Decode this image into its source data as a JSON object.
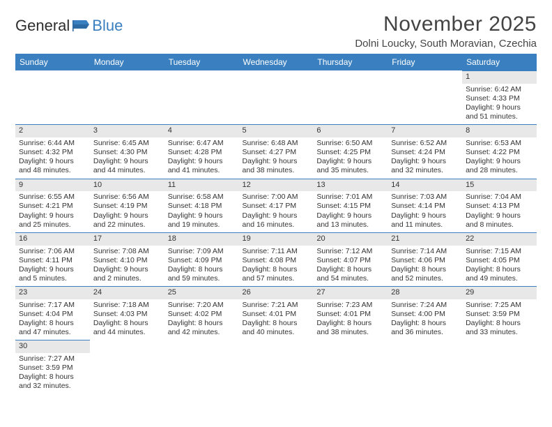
{
  "brand": {
    "part1": "General",
    "part2": "Blue"
  },
  "title": "November 2025",
  "location": "Dolni Loucky, South Moravian, Czechia",
  "theme": {
    "accent": "#3a7fbf",
    "header_bg": "#e8e8e8",
    "text": "#333333"
  },
  "day_names": [
    "Sunday",
    "Monday",
    "Tuesday",
    "Wednesday",
    "Thursday",
    "Friday",
    "Saturday"
  ],
  "weeks": [
    [
      null,
      null,
      null,
      null,
      null,
      null,
      {
        "n": "1",
        "sr": "Sunrise: 6:42 AM",
        "ss": "Sunset: 4:33 PM",
        "d1": "Daylight: 9 hours",
        "d2": "and 51 minutes."
      }
    ],
    [
      {
        "n": "2",
        "sr": "Sunrise: 6:44 AM",
        "ss": "Sunset: 4:32 PM",
        "d1": "Daylight: 9 hours",
        "d2": "and 48 minutes."
      },
      {
        "n": "3",
        "sr": "Sunrise: 6:45 AM",
        "ss": "Sunset: 4:30 PM",
        "d1": "Daylight: 9 hours",
        "d2": "and 44 minutes."
      },
      {
        "n": "4",
        "sr": "Sunrise: 6:47 AM",
        "ss": "Sunset: 4:28 PM",
        "d1": "Daylight: 9 hours",
        "d2": "and 41 minutes."
      },
      {
        "n": "5",
        "sr": "Sunrise: 6:48 AM",
        "ss": "Sunset: 4:27 PM",
        "d1": "Daylight: 9 hours",
        "d2": "and 38 minutes."
      },
      {
        "n": "6",
        "sr": "Sunrise: 6:50 AM",
        "ss": "Sunset: 4:25 PM",
        "d1": "Daylight: 9 hours",
        "d2": "and 35 minutes."
      },
      {
        "n": "7",
        "sr": "Sunrise: 6:52 AM",
        "ss": "Sunset: 4:24 PM",
        "d1": "Daylight: 9 hours",
        "d2": "and 32 minutes."
      },
      {
        "n": "8",
        "sr": "Sunrise: 6:53 AM",
        "ss": "Sunset: 4:22 PM",
        "d1": "Daylight: 9 hours",
        "d2": "and 28 minutes."
      }
    ],
    [
      {
        "n": "9",
        "sr": "Sunrise: 6:55 AM",
        "ss": "Sunset: 4:21 PM",
        "d1": "Daylight: 9 hours",
        "d2": "and 25 minutes."
      },
      {
        "n": "10",
        "sr": "Sunrise: 6:56 AM",
        "ss": "Sunset: 4:19 PM",
        "d1": "Daylight: 9 hours",
        "d2": "and 22 minutes."
      },
      {
        "n": "11",
        "sr": "Sunrise: 6:58 AM",
        "ss": "Sunset: 4:18 PM",
        "d1": "Daylight: 9 hours",
        "d2": "and 19 minutes."
      },
      {
        "n": "12",
        "sr": "Sunrise: 7:00 AM",
        "ss": "Sunset: 4:17 PM",
        "d1": "Daylight: 9 hours",
        "d2": "and 16 minutes."
      },
      {
        "n": "13",
        "sr": "Sunrise: 7:01 AM",
        "ss": "Sunset: 4:15 PM",
        "d1": "Daylight: 9 hours",
        "d2": "and 13 minutes."
      },
      {
        "n": "14",
        "sr": "Sunrise: 7:03 AM",
        "ss": "Sunset: 4:14 PM",
        "d1": "Daylight: 9 hours",
        "d2": "and 11 minutes."
      },
      {
        "n": "15",
        "sr": "Sunrise: 7:04 AM",
        "ss": "Sunset: 4:13 PM",
        "d1": "Daylight: 9 hours",
        "d2": "and 8 minutes."
      }
    ],
    [
      {
        "n": "16",
        "sr": "Sunrise: 7:06 AM",
        "ss": "Sunset: 4:11 PM",
        "d1": "Daylight: 9 hours",
        "d2": "and 5 minutes."
      },
      {
        "n": "17",
        "sr": "Sunrise: 7:08 AM",
        "ss": "Sunset: 4:10 PM",
        "d1": "Daylight: 9 hours",
        "d2": "and 2 minutes."
      },
      {
        "n": "18",
        "sr": "Sunrise: 7:09 AM",
        "ss": "Sunset: 4:09 PM",
        "d1": "Daylight: 8 hours",
        "d2": "and 59 minutes."
      },
      {
        "n": "19",
        "sr": "Sunrise: 7:11 AM",
        "ss": "Sunset: 4:08 PM",
        "d1": "Daylight: 8 hours",
        "d2": "and 57 minutes."
      },
      {
        "n": "20",
        "sr": "Sunrise: 7:12 AM",
        "ss": "Sunset: 4:07 PM",
        "d1": "Daylight: 8 hours",
        "d2": "and 54 minutes."
      },
      {
        "n": "21",
        "sr": "Sunrise: 7:14 AM",
        "ss": "Sunset: 4:06 PM",
        "d1": "Daylight: 8 hours",
        "d2": "and 52 minutes."
      },
      {
        "n": "22",
        "sr": "Sunrise: 7:15 AM",
        "ss": "Sunset: 4:05 PM",
        "d1": "Daylight: 8 hours",
        "d2": "and 49 minutes."
      }
    ],
    [
      {
        "n": "23",
        "sr": "Sunrise: 7:17 AM",
        "ss": "Sunset: 4:04 PM",
        "d1": "Daylight: 8 hours",
        "d2": "and 47 minutes."
      },
      {
        "n": "24",
        "sr": "Sunrise: 7:18 AM",
        "ss": "Sunset: 4:03 PM",
        "d1": "Daylight: 8 hours",
        "d2": "and 44 minutes."
      },
      {
        "n": "25",
        "sr": "Sunrise: 7:20 AM",
        "ss": "Sunset: 4:02 PM",
        "d1": "Daylight: 8 hours",
        "d2": "and 42 minutes."
      },
      {
        "n": "26",
        "sr": "Sunrise: 7:21 AM",
        "ss": "Sunset: 4:01 PM",
        "d1": "Daylight: 8 hours",
        "d2": "and 40 minutes."
      },
      {
        "n": "27",
        "sr": "Sunrise: 7:23 AM",
        "ss": "Sunset: 4:01 PM",
        "d1": "Daylight: 8 hours",
        "d2": "and 38 minutes."
      },
      {
        "n": "28",
        "sr": "Sunrise: 7:24 AM",
        "ss": "Sunset: 4:00 PM",
        "d1": "Daylight: 8 hours",
        "d2": "and 36 minutes."
      },
      {
        "n": "29",
        "sr": "Sunrise: 7:25 AM",
        "ss": "Sunset: 3:59 PM",
        "d1": "Daylight: 8 hours",
        "d2": "and 33 minutes."
      }
    ],
    [
      {
        "n": "30",
        "sr": "Sunrise: 7:27 AM",
        "ss": "Sunset: 3:59 PM",
        "d1": "Daylight: 8 hours",
        "d2": "and 32 minutes."
      },
      null,
      null,
      null,
      null,
      null,
      null
    ]
  ]
}
